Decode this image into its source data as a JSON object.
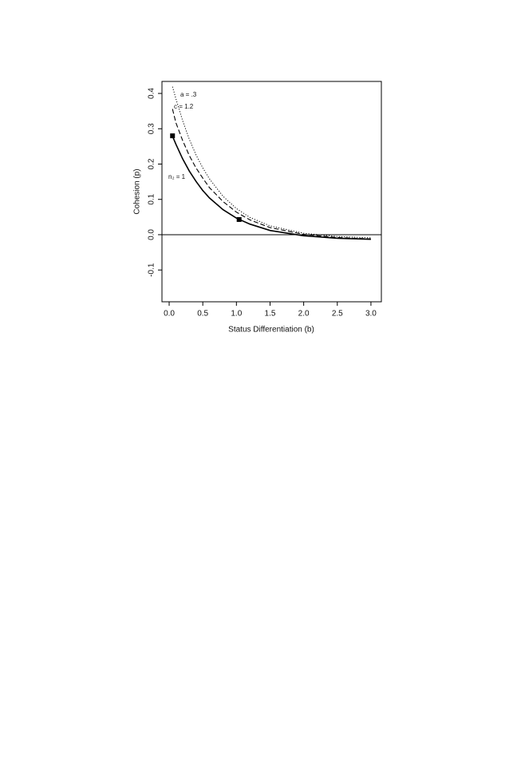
{
  "chart_data": {
    "type": "line",
    "x_label": "Status Differentiation (b)",
    "y_label": "Cohesion (p)",
    "x": [
      0.05,
      0.1,
      0.2,
      0.3,
      0.4,
      0.5,
      0.6,
      0.8,
      1.0,
      1.2,
      1.5,
      2.0,
      2.5,
      3.0
    ],
    "series": [
      {
        "label": "a = .3",
        "dash": "dotted",
        "color": "#000000",
        "values": [
          0.419,
          0.385,
          0.323,
          0.27,
          0.226,
          0.189,
          0.158,
          0.109,
          0.074,
          0.049,
          0.025,
          0.004,
          -0.005,
          -0.009
        ]
      },
      {
        "label": "c = 1.2",
        "dash": "dashed",
        "color": "#000000",
        "values": [
          0.356,
          0.317,
          0.267,
          0.224,
          0.189,
          0.16,
          0.133,
          0.094,
          0.064,
          0.042,
          0.02,
          0.001,
          -0.008,
          -0.012
        ]
      },
      {
        "label": "n₂ = 1",
        "dash": "solid",
        "color": "#000000",
        "values": [
          0.279,
          0.256,
          0.215,
          0.18,
          0.151,
          0.125,
          0.104,
          0.071,
          0.047,
          0.03,
          0.012,
          -0.003,
          -0.01,
          -0.013
        ]
      }
    ],
    "points": {
      "x": [
        0.05,
        1.04
      ],
      "y": [
        0.28,
        0.043
      ]
    },
    "hline": 0,
    "xlim": [
      -0.107,
      3.155
    ],
    "ylim": [
      -0.19,
      0.434
    ],
    "xticks": [
      {
        "value": 0,
        "label": "0.0"
      },
      0.5,
      {
        "value": 1,
        "label": "1.0"
      },
      1.5,
      {
        "value": 2,
        "label": "2.0"
      },
      2.5,
      {
        "value": 3,
        "label": "3.0"
      }
    ],
    "yticks": [
      -0.1,
      {
        "value": 0,
        "label": "0.0"
      },
      0.1,
      0.2,
      0.3,
      0.4
    ],
    "grid": false
  }
}
